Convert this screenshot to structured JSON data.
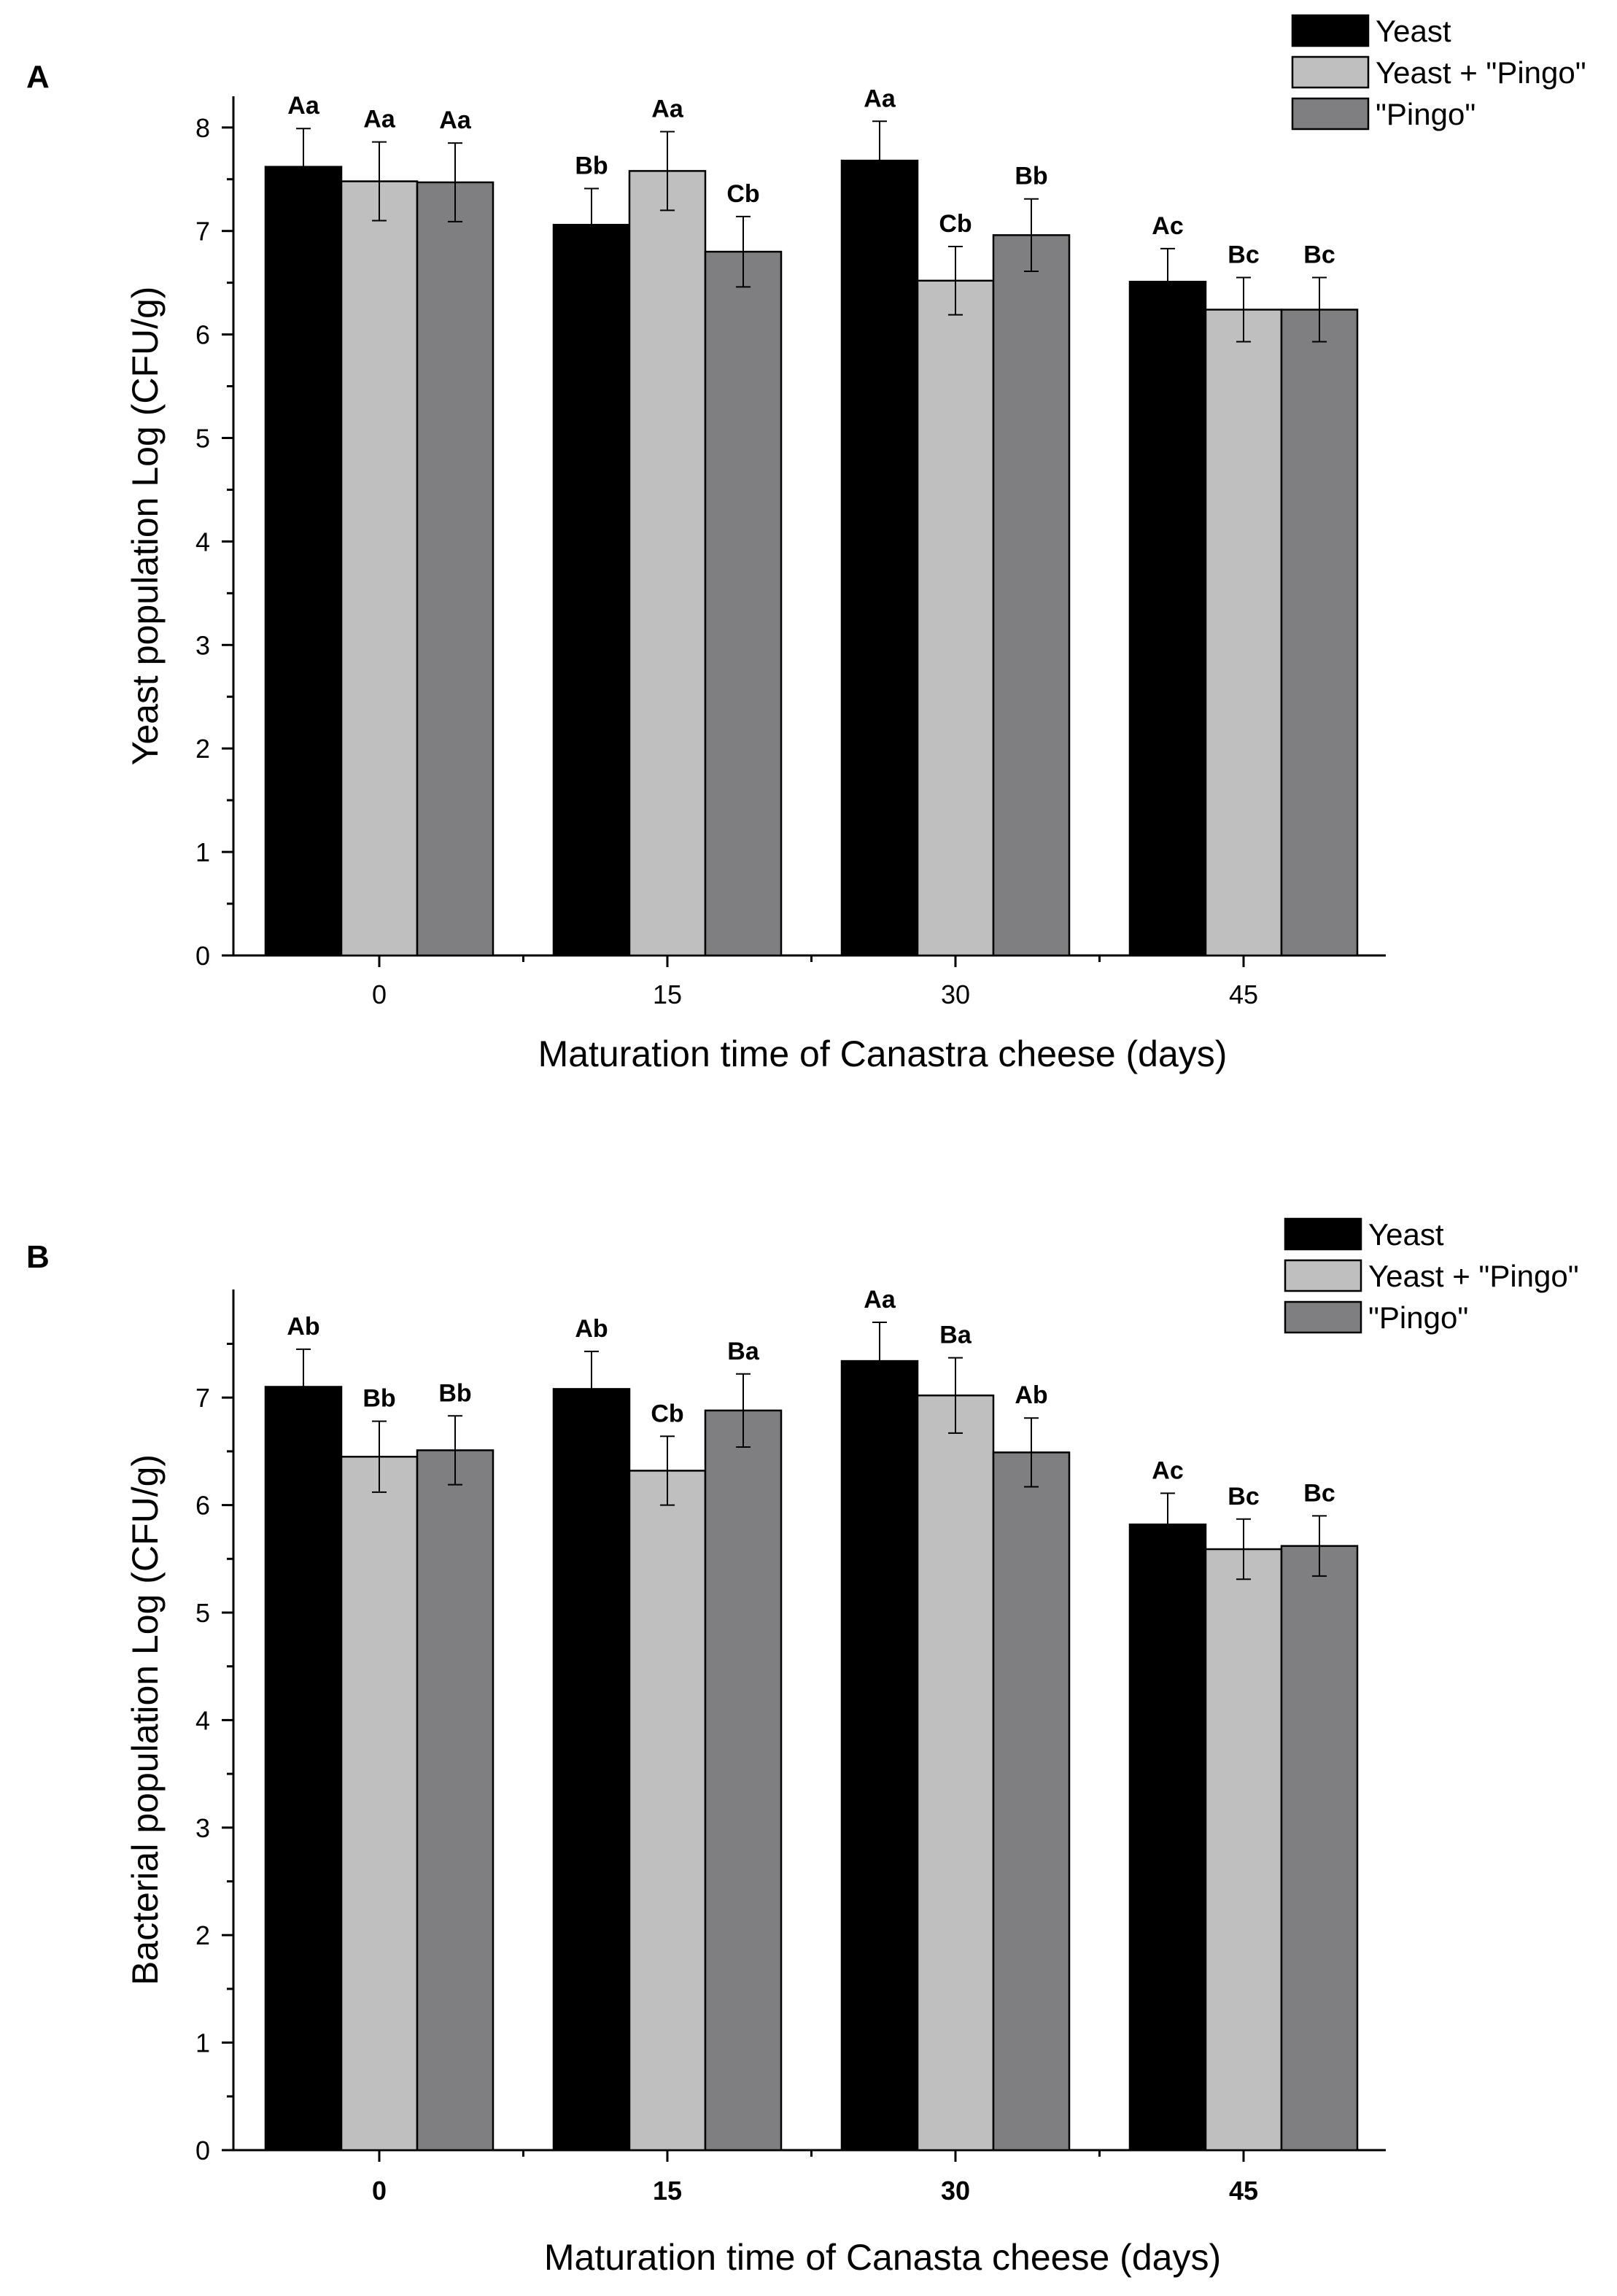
{
  "chart_data": [
    {
      "panel_label": "A",
      "type": "bar",
      "categories": [
        "0",
        "15",
        "30",
        "45"
      ],
      "series": [
        {
          "name": "Yeast",
          "color": "#000000",
          "values": [
            7.62,
            7.06,
            7.68,
            6.51
          ],
          "errors": [
            0.37,
            0.35,
            0.38,
            0.32
          ],
          "labels": [
            "Aa",
            "Bb",
            "Aa",
            "Ac"
          ]
        },
        {
          "name": "Yeast + \"Pingo\"",
          "color": "#c0bfc0",
          "values": [
            7.48,
            7.58,
            6.52,
            6.24
          ],
          "errors": [
            0.38,
            0.38,
            0.33,
            0.31
          ],
          "labels": [
            "Aa",
            "Aa",
            "Cb",
            "Bc"
          ]
        },
        {
          "name": "\"Pingo\"",
          "color": "#7f7e80",
          "values": [
            7.47,
            6.8,
            6.96,
            6.24
          ],
          "errors": [
            0.38,
            0.34,
            0.35,
            0.31
          ],
          "labels": [
            "Aa",
            "Cb",
            "Bb",
            "Bc"
          ]
        }
      ],
      "xlabel": "Maturation time of Canastra cheese (days)",
      "ylabel": "Yeast population Log (CFU/g)",
      "ylim": [
        0,
        8.3
      ],
      "yticks": [
        0,
        1,
        2,
        3,
        4,
        5,
        6,
        7,
        8
      ],
      "legend_position": "top-right",
      "grid": false
    },
    {
      "panel_label": "B",
      "type": "bar",
      "categories": [
        "0",
        "15",
        "30",
        "45"
      ],
      "series": [
        {
          "name": "Yeast",
          "color": "#000000",
          "values": [
            7.1,
            7.08,
            7.34,
            5.82
          ],
          "errors": [
            0.35,
            0.35,
            0.36,
            0.29
          ],
          "labels": [
            "Ab",
            "Ab",
            "Aa",
            "Ac"
          ]
        },
        {
          "name": "Yeast + \"Pingo\"",
          "color": "#c0bfc0",
          "values": [
            6.45,
            6.32,
            7.02,
            5.59
          ],
          "errors": [
            0.33,
            0.32,
            0.35,
            0.28
          ],
          "labels": [
            "Bb",
            "Cb",
            "Ba",
            "Bc"
          ]
        },
        {
          "name": "\"Pingo\"",
          "color": "#7f7e80",
          "values": [
            6.51,
            6.88,
            6.49,
            5.62
          ],
          "errors": [
            0.32,
            0.34,
            0.32,
            0.28
          ],
          "labels": [
            "Bb",
            "Ba",
            "Ab",
            "Bc"
          ]
        }
      ],
      "xlabel": "Maturation time of Canasta cheese (days)",
      "ylabel": "Bacterial population Log (CFU/g)",
      "ylim": [
        0,
        7.95
      ],
      "yticks": [
        0,
        1,
        2,
        3,
        4,
        5,
        6,
        7
      ],
      "legend_position": "top-right",
      "grid": false
    }
  ]
}
